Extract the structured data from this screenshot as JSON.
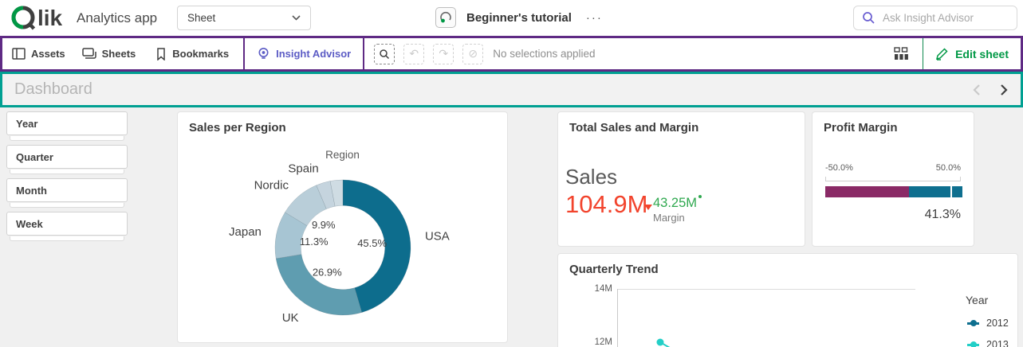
{
  "topbar": {
    "logo_text": "lik",
    "app_name": "Analytics app",
    "sheet_selector_value": "Sheet",
    "document_title": "Beginner's tutorial",
    "more_menu": "···",
    "search_placeholder": "Ask Insight Advisor"
  },
  "toolbar": {
    "assets_label": "Assets",
    "sheets_label": "Sheets",
    "bookmarks_label": "Bookmarks",
    "insight_advisor_label": "Insight Advisor",
    "undo_glyph": "↶",
    "redo_glyph": "↷",
    "clear_glyph": "⊘",
    "selections_status": "No selections applied",
    "edit_sheet_label": "Edit sheet"
  },
  "sheet_header": {
    "title": "Dashboard"
  },
  "filters": {
    "items": [
      "Year",
      "Quarter",
      "Month",
      "Week"
    ]
  },
  "kpi_card": {
    "title": "Total Sales and Margin",
    "primary_label": "Sales",
    "primary_value": "104.9M",
    "primary_trend": "down",
    "secondary_value": "43.25M",
    "secondary_label": "Margin"
  },
  "colors": {
    "annotation_purple": "#5f2a84",
    "annotation_teal": "#00a092",
    "qlik_green": "#009845",
    "insight_purple": "#5c5cc5",
    "kpi_red": "#f2442d",
    "kpi_green": "#2fa84f"
  },
  "chart_data": [
    {
      "type": "pie",
      "title": "Sales per Region",
      "dimension_label": "Region",
      "labels": [
        "USA",
        "UK",
        "Japan",
        "Nordic",
        "Spain",
        ""
      ],
      "values": [
        45.5,
        26.9,
        11.3,
        9.9,
        3.4,
        3.0
      ],
      "colors": [
        "#0d6d8d",
        "#5f9db0",
        "#a7c5d3",
        "#b9ced9",
        "#c5d4de",
        "#cfdce3"
      ],
      "donut_hole": 0.62,
      "label_min_pct": 9,
      "legend_position": "none"
    },
    {
      "type": "gauge",
      "title": "Profit Margin",
      "min": -50,
      "max": 50,
      "value": 41.3,
      "value_label": "41.3%",
      "axis_labels": [
        "-50.0%",
        "50.0%"
      ],
      "segments": [
        {
          "to": 11,
          "color": "#8a2a66"
        },
        {
          "to": 50,
          "color": "#0e6f8f"
        }
      ]
    },
    {
      "type": "line",
      "title": "Quarterly Trend",
      "legend_title": "Year",
      "legend_position": "right",
      "y_ticks": [
        "14M",
        "12M"
      ],
      "ylim_visible": [
        12,
        14
      ],
      "series": [
        {
          "name": "2012",
          "color": "#0e6f8f",
          "visible_values": []
        },
        {
          "name": "2013",
          "color": "#23cfc7",
          "visible_values": [
            12.0
          ]
        }
      ]
    }
  ]
}
